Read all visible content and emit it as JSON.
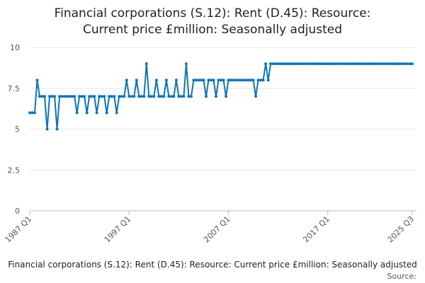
{
  "chart_data": {
    "type": "line",
    "title": [
      "Financial corporations (S.12): Rent (D.45): Resource:",
      "Current price £million: Seasonally adjusted"
    ],
    "caption": "Financial corporations (S.12): Rent (D.45): Resource: Current price £million: Seasonally adjusted",
    "source": "Source:",
    "categories": [
      "1987 Q1",
      null,
      null,
      null,
      null,
      null,
      null,
      null,
      null,
      null,
      null,
      null,
      null,
      null,
      null,
      null,
      null,
      null,
      null,
      null,
      null,
      null,
      null,
      null,
      null,
      null,
      null,
      null,
      null,
      null,
      null,
      null,
      null,
      null,
      null,
      null,
      null,
      null,
      null,
      null,
      "1997 Q1",
      null,
      null,
      null,
      null,
      null,
      null,
      null,
      null,
      null,
      null,
      null,
      null,
      null,
      null,
      null,
      null,
      null,
      null,
      null,
      null,
      null,
      null,
      null,
      null,
      null,
      null,
      null,
      null,
      null,
      null,
      null,
      null,
      null,
      null,
      null,
      null,
      null,
      null,
      null,
      "2007 Q1",
      null,
      null,
      null,
      null,
      null,
      null,
      null,
      null,
      null,
      null,
      null,
      null,
      null,
      null,
      null,
      null,
      null,
      null,
      null,
      null,
      null,
      null,
      null,
      null,
      null,
      null,
      null,
      null,
      null,
      null,
      null,
      null,
      null,
      null,
      null,
      null,
      null,
      null,
      null,
      "2017 Q1",
      null,
      null,
      null,
      null,
      null,
      null,
      null,
      null,
      null,
      null,
      null,
      null,
      null,
      null,
      null,
      null,
      null,
      null,
      null,
      null,
      null,
      null,
      null,
      null,
      null,
      null,
      null,
      null,
      null,
      null,
      null,
      null,
      null,
      "2025 Q3"
    ],
    "series": [
      {
        "color": "#0f75b5",
        "values": [
          6,
          6,
          6,
          8,
          7,
          7,
          7,
          5,
          7,
          7,
          7,
          5,
          7,
          7,
          7,
          7,
          7,
          7,
          7,
          6,
          7,
          7,
          7,
          6,
          7,
          7,
          7,
          6,
          7,
          7,
          7,
          6,
          7,
          7,
          7,
          6,
          7,
          7,
          7,
          8,
          7,
          7,
          7,
          8,
          7,
          7,
          7,
          9,
          7,
          7,
          7,
          8,
          7,
          7,
          7,
          8,
          7,
          7,
          7,
          8,
          7,
          7,
          7,
          9,
          7,
          7,
          8,
          8,
          8,
          8,
          8,
          7,
          8,
          8,
          8,
          7,
          8,
          8,
          8,
          7,
          8,
          8,
          8,
          8,
          8,
          8,
          8,
          8,
          8,
          8,
          8,
          7,
          8,
          8,
          8,
          9,
          8,
          9,
          9,
          9,
          9,
          9,
          9,
          9,
          9,
          9,
          9,
          9,
          9,
          9,
          9,
          9,
          9,
          9,
          9,
          9,
          9,
          9,
          9,
          9,
          9,
          9,
          9,
          9,
          9,
          9,
          9,
          9,
          9,
          9,
          9,
          9,
          9,
          9,
          9,
          9,
          9,
          9,
          9,
          9,
          9,
          9,
          9,
          9,
          9,
          9,
          9,
          9,
          9,
          9,
          9,
          9,
          9,
          9,
          9
        ]
      }
    ],
    "ylim": [
      0,
      10
    ],
    "yticks": [
      0,
      2.5,
      5,
      7.5,
      10
    ],
    "grid": true
  }
}
